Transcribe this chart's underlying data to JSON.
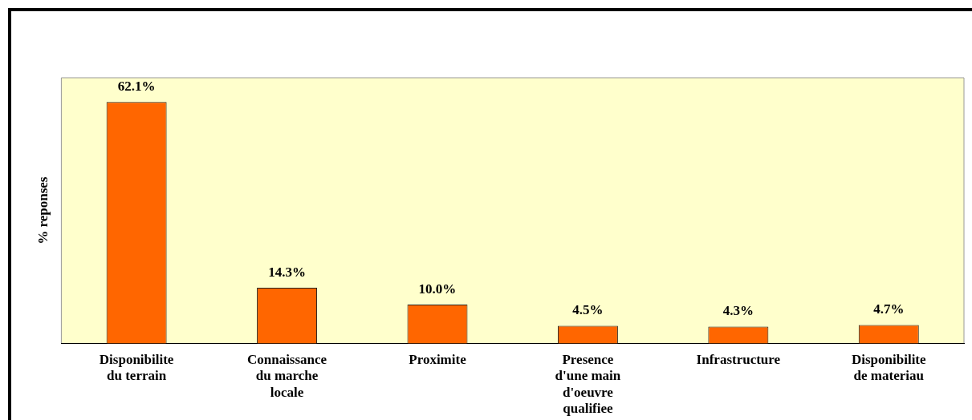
{
  "chart_data": {
    "type": "bar",
    "ylabel": "% reponses",
    "categories": [
      "Disponibilite du terrain",
      "Connaissance du marche locale",
      "Proximite",
      "Presence d'une main d'oeuvre qualifiee",
      "Infrastructure",
      "Disponibilite de materiau"
    ],
    "values": [
      62.1,
      14.3,
      10.0,
      4.5,
      4.3,
      4.7
    ],
    "value_labels": [
      "62.1%",
      "14.3%",
      "10.0%",
      "4.5%",
      "4.3%",
      "4.7%"
    ],
    "color": "#ff6600",
    "tick_labels": "x",
    "grid": false,
    "legend": false
  }
}
